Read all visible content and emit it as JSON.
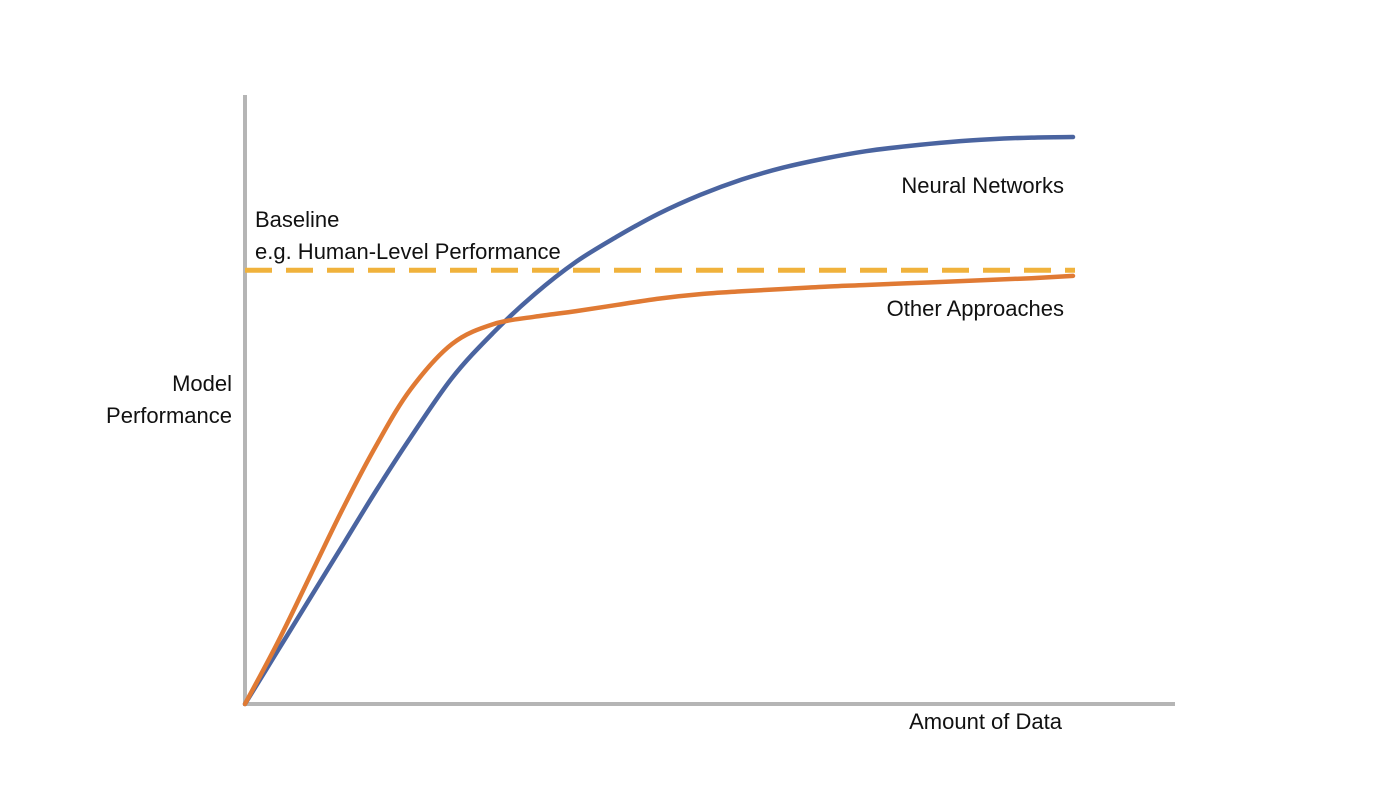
{
  "chart_data": {
    "type": "line",
    "ylabel": [
      "Model",
      "Performance"
    ],
    "xlabel": "Amount of Data",
    "xlim": [
      0,
      100
    ],
    "ylim": [
      0,
      100
    ],
    "grid": false,
    "series": [
      {
        "name": "Neural Networks",
        "color": "#4a64a0",
        "x": [
          0,
          4,
          8,
          12,
          16,
          20,
          25,
          30,
          35,
          40,
          45,
          50,
          55,
          60,
          65,
          70,
          75,
          80,
          85,
          90,
          95,
          100
        ],
        "y": [
          0,
          9.5,
          19,
          28.5,
          38,
          47,
          57.5,
          65.5,
          72.3,
          78,
          82.5,
          86.5,
          89.8,
          92.5,
          94.6,
          96.2,
          97.5,
          98.4,
          99.1,
          99.6,
          99.9,
          100
        ]
      },
      {
        "name": "Other Approaches",
        "color": "#e07a34",
        "x": [
          0,
          4,
          8,
          12,
          16,
          20,
          25,
          30,
          35,
          40,
          45,
          50,
          55,
          60,
          65,
          70,
          75,
          80,
          85,
          90,
          95,
          100
        ],
        "y": [
          0,
          11,
          23,
          35,
          46,
          55.5,
          63.5,
          67,
          68.3,
          69.3,
          70.4,
          71.5,
          72.3,
          72.8,
          73.2,
          73.6,
          73.9,
          74.2,
          74.5,
          74.8,
          75.1,
          75.5
        ]
      }
    ],
    "baseline": {
      "label_lines": [
        "Baseline",
        "e.g. Human-Level Performance"
      ],
      "y": 76.5,
      "color": "#f0b23c"
    }
  }
}
